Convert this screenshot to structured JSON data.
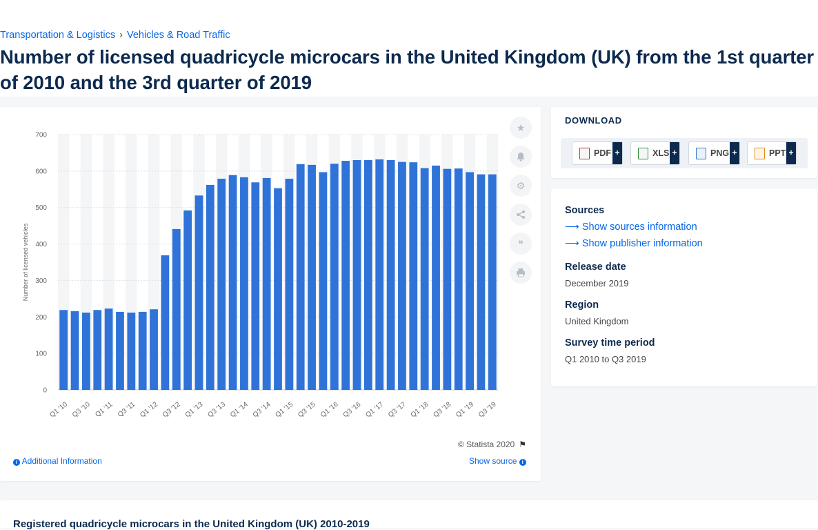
{
  "breadcrumb": {
    "item1": "Transportation & Logistics",
    "separator": "›",
    "item2": "Vehicles & Road Traffic"
  },
  "page_title": "Number of licensed quadricycle microcars in the United Kingdom (UK) from the 1st quarter of 2010 and the 3rd quarter of 2019",
  "colors": {
    "bar": "#2f73d9",
    "title": "#0d2a4e",
    "link": "#0666e5"
  },
  "toolbar": {
    "icons": [
      "star-icon",
      "bell-icon",
      "gear-icon",
      "share-icon",
      "quote-icon",
      "print-icon"
    ]
  },
  "chart_footer": {
    "copyright": "© Statista 2020",
    "additional_info": "Additional Information",
    "show_source": "Show source"
  },
  "download": {
    "heading": "DOWNLOAD",
    "formats": [
      "PDF",
      "XLS",
      "PNG",
      "PPT"
    ],
    "plus": "+"
  },
  "info": {
    "sources_label": "Sources",
    "show_sources": "Show sources information",
    "show_publisher": "Show publisher information",
    "release_label": "Release date",
    "release_value": "December 2019",
    "region_label": "Region",
    "region_value": "United Kingdom",
    "survey_label": "Survey time period",
    "survey_value": "Q1 2010 to Q3 2019"
  },
  "bottom_title": "Registered quadricycle microcars in the United Kingdom (UK) 2010-2019",
  "chart_data": {
    "type": "bar",
    "title": "",
    "xlabel": "",
    "ylabel": "Number of licensed vehicles",
    "ylim": [
      0,
      700
    ],
    "yticks": [
      0,
      100,
      200,
      300,
      400,
      500,
      600,
      700
    ],
    "grid": true,
    "categories": [
      "Q1 '10",
      "Q2 '10",
      "Q3 '10",
      "Q4 '10",
      "Q1 '11",
      "Q2 '11",
      "Q3 '11",
      "Q4 '11",
      "Q1 '12",
      "Q2 '12",
      "Q3 '12",
      "Q4 '12",
      "Q1 '13",
      "Q2 '13",
      "Q3 '13",
      "Q4 '13",
      "Q1 '14",
      "Q2 '14",
      "Q3 '14",
      "Q4 '14",
      "Q1 '15",
      "Q2 '15",
      "Q3 '15",
      "Q4 '15",
      "Q1 '16",
      "Q2 '16",
      "Q3 '16",
      "Q4 '16",
      "Q1 '17",
      "Q2 '17",
      "Q3 '17",
      "Q4 '17",
      "Q1 '18",
      "Q2 '18",
      "Q3 '18",
      "Q4 '18",
      "Q1 '19",
      "Q2 '19",
      "Q3 '19"
    ],
    "tick_labels": [
      "Q1 '10",
      "Q3 '10",
      "Q1 '11",
      "Q3 '11",
      "Q1 '12",
      "Q3 '12",
      "Q1 '13",
      "Q3 '13",
      "Q1 '14",
      "Q3 '14",
      "Q1 '15",
      "Q3 '15",
      "Q1 '16",
      "Q3 '16",
      "Q1 '17",
      "Q3 '17",
      "Q1 '18",
      "Q3 '18",
      "Q1 '19",
      "Q3 '19"
    ],
    "values": [
      219,
      216,
      212,
      219,
      223,
      214,
      212,
      214,
      221,
      369,
      441,
      492,
      533,
      562,
      579,
      589,
      583,
      569,
      581,
      553,
      579,
      619,
      617,
      597,
      620,
      628,
      630,
      630,
      632,
      630,
      625,
      624,
      608,
      615,
      606,
      607,
      597,
      591,
      591
    ]
  }
}
